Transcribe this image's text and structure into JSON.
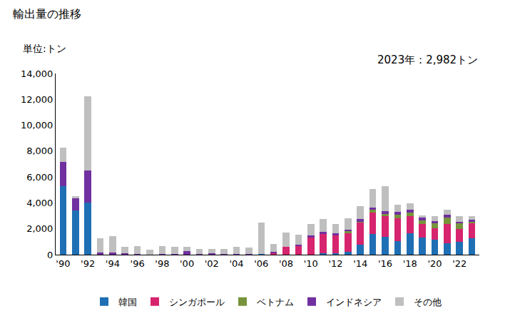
{
  "chart_data": {
    "type": "bar",
    "stacked": true,
    "title": "輸出量の推移",
    "ylabel": "単位:トン",
    "annotations": [
      "2023年：2,982トン"
    ],
    "legend": "bottom",
    "grid": false,
    "categories": [
      "'90",
      null,
      "'92",
      null,
      "'94",
      null,
      "'96",
      null,
      "'98",
      null,
      "'00",
      null,
      "'02",
      null,
      "'04",
      null,
      "'06",
      null,
      "'08",
      null,
      "'10",
      null,
      "'12",
      null,
      "'14",
      null,
      "'16",
      null,
      "'18",
      null,
      "'20",
      null,
      "'22",
      null
    ],
    "series": [
      {
        "name": "韓国",
        "color": "#1f6fb4",
        "values": [
          5300,
          3400,
          4000,
          0,
          50,
          0,
          0,
          0,
          0,
          0,
          0,
          0,
          0,
          0,
          0,
          0,
          50,
          0,
          0,
          0,
          0,
          100,
          100,
          200,
          750,
          1600,
          1400,
          1050,
          1650,
          1350,
          1150,
          900,
          1000,
          1250
        ]
      },
      {
        "name": "シンガポール",
        "color": "#d6246e",
        "values": [
          0,
          0,
          0,
          0,
          0,
          0,
          0,
          0,
          0,
          0,
          0,
          0,
          0,
          0,
          0,
          0,
          0,
          150,
          600,
          700,
          1350,
          1550,
          1400,
          1500,
          1750,
          1650,
          1600,
          1750,
          1300,
          1000,
          900,
          1450,
          1000,
          1150
        ]
      },
      {
        "name": "ベトナム",
        "color": "#77933c",
        "values": [
          0,
          0,
          0,
          0,
          0,
          0,
          0,
          0,
          0,
          0,
          0,
          0,
          0,
          0,
          0,
          0,
          0,
          0,
          0,
          0,
          0,
          0,
          0,
          100,
          50,
          250,
          150,
          300,
          300,
          300,
          400,
          500,
          400,
          150
        ]
      },
      {
        "name": "インドネシア",
        "color": "#7030a0",
        "values": [
          1850,
          1000,
          2500,
          150,
          100,
          100,
          50,
          20,
          50,
          80,
          250,
          80,
          100,
          80,
          50,
          50,
          0,
          50,
          0,
          50,
          150,
          100,
          150,
          150,
          200,
          150,
          200,
          200,
          200,
          200,
          150,
          250,
          150,
          150
        ]
      },
      {
        "name": "その他",
        "color": "#bfbfbf",
        "values": [
          1100,
          100,
          5750,
          1100,
          1300,
          500,
          600,
          380,
          600,
          520,
          350,
          370,
          350,
          370,
          550,
          500,
          2450,
          600,
          1100,
          800,
          850,
          1000,
          700,
          850,
          1000,
          1400,
          1950,
          550,
          500,
          200,
          350,
          350,
          450,
          282
        ]
      }
    ],
    "ylim": [
      0,
      14000
    ],
    "yticks": [
      0,
      {
        "value": 2000,
        "label": "2,000"
      },
      {
        "value": 4000,
        "label": "4,000"
      },
      {
        "value": 6000,
        "label": "6,000"
      },
      {
        "value": 8000,
        "label": "8,000"
      },
      {
        "value": 10000,
        "label": "10,000"
      },
      {
        "value": 12000,
        "label": "12,000"
      },
      {
        "value": 14000,
        "label": "14,000"
      }
    ]
  }
}
